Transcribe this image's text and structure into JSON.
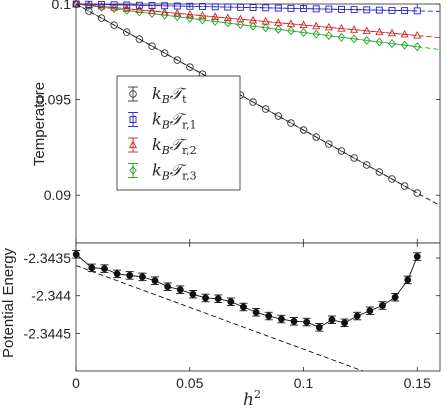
{
  "chart_data": [
    {
      "type": "scatter",
      "ylabel": "Temperature",
      "xlim": [
        0,
        0.16
      ],
      "ylim": [
        0.0875,
        0.1
      ],
      "yticks": [
        0.09,
        0.095,
        0.1
      ],
      "ytick_labels": [
        "0.09",
        "0.095",
        "0.1"
      ],
      "legend": {
        "placement": "center-left",
        "entries": [
          {
            "main": "k",
            "sub1": "B",
            "sym": "𝒯",
            "sub2": "t"
          },
          {
            "main": "k",
            "sub1": "B",
            "sym": "𝒯",
            "sub2": "r,1"
          },
          {
            "main": "k",
            "sub1": "B",
            "sym": "𝒯",
            "sub2": "r,2"
          },
          {
            "main": "k",
            "sub1": "B",
            "sym": "𝒯",
            "sub2": "r,3"
          }
        ]
      },
      "series": [
        {
          "marker": "circle",
          "color": "#333333",
          "slope": -0.0659,
          "x": [
            0.0001,
            0.00111,
            0.00444,
            0.01,
            0.01778,
            0.02778,
            0.04,
            0.05444,
            0.07111,
            0.09,
            0.11111,
            0.13444,
            0.16
          ],
          "fit_line": "dashed"
        },
        {
          "marker": "square",
          "color": "#1f1fcf",
          "slope": -0.0024,
          "fit_line": "dashed"
        },
        {
          "marker": "triangle",
          "color": "#d62020",
          "slope": -0.011,
          "fit_line": "dashed"
        },
        {
          "marker": "diamond",
          "color": "#1ea51e",
          "slope": -0.0149,
          "fit_line": "dashed"
        }
      ],
      "x_spacing_note": ""
    },
    {
      "type": "line",
      "xlabel": "h",
      "xlabel_sup": "2",
      "ylabel": "Potential Energy",
      "xlim": [
        0,
        0.16
      ],
      "ylim": [
        -2.345,
        -2.3433
      ],
      "xticks": [
        0,
        0.05,
        0.1,
        0.15
      ],
      "xtick_labels": [
        "0",
        "0.05",
        "0.1",
        "0.15"
      ],
      "yticks": [
        -2.3435,
        -2.344,
        -2.3445
      ],
      "ytick_labels": [
        "-2.3435",
        "-2.344",
        "-2.3445"
      ],
      "series": [
        {
          "marker": "filled-circle",
          "color": "#111111",
          "errorbar": 5e-05,
          "x": [
            0.0001,
            0.00694,
            0.0125,
            0.01806,
            0.02361,
            0.02917,
            0.03472,
            0.04028,
            0.04583,
            0.05139,
            0.05694,
            0.0625,
            0.06806,
            0.07361,
            0.07917,
            0.08472,
            0.09028,
            0.09583,
            0.10139,
            0.10694,
            0.1125,
            0.11806,
            0.12361,
            0.12917,
            0.13472,
            0.14028,
            0.14583,
            0.15
          ],
          "y": [
            -2.34345,
            -2.34363,
            -2.34364,
            -2.34371,
            -2.34373,
            -2.34375,
            -2.3438,
            -2.34388,
            -2.34392,
            -2.34398,
            -2.34403,
            -2.34404,
            -2.34408,
            -2.34415,
            -2.34422,
            -2.34427,
            -2.34431,
            -2.34434,
            -2.34435,
            -2.34442,
            -2.34432,
            -2.34436,
            -2.34427,
            -2.3442,
            -2.34413,
            -2.34402,
            -2.34379,
            -2.34348
          ]
        }
      ],
      "fit_line": {
        "style": "dashed",
        "intercept": -2.3436,
        "slope": -0.0111
      }
    }
  ]
}
